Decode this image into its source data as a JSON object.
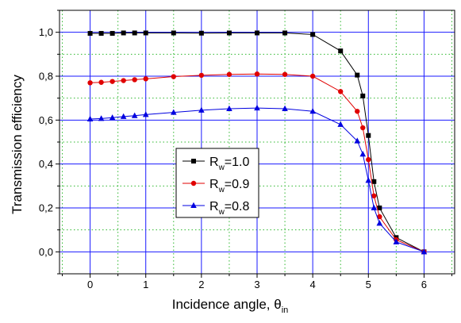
{
  "chart_data": {
    "type": "line",
    "title": "",
    "xlabel": "Incidence angle, θ",
    "xlabel_sub": "in",
    "ylabel": "Transmission efficiency",
    "xlim": [
      -0.55,
      6.55
    ],
    "ylim": [
      -0.1,
      1.1
    ],
    "x_ticks": [
      0,
      1,
      2,
      3,
      4,
      5,
      6
    ],
    "x_tick_labels": [
      "0",
      "1",
      "2",
      "3",
      "4",
      "5",
      "6"
    ],
    "y_ticks": [
      0.0,
      0.2,
      0.4,
      0.6,
      0.8,
      1.0
    ],
    "y_tick_labels": [
      "0,0",
      "0,2",
      "0,4",
      "0,6",
      "0,8",
      "1,0"
    ],
    "grid": "major solid blue, minor dotted green",
    "legend_position": "center",
    "series": [
      {
        "name": "R",
        "name_sub": "w",
        "name_suffix": "=1.0",
        "color": "#000000",
        "marker": "square",
        "x": [
          0,
          0.2,
          0.4,
          0.6,
          0.8,
          1.0,
          1.5,
          2.0,
          2.5,
          3.0,
          3.5,
          4.0,
          4.5,
          4.8,
          4.9,
          5.0,
          5.1,
          5.2,
          5.5,
          6.0
        ],
        "y": [
          0.995,
          0.995,
          0.995,
          0.997,
          0.997,
          0.997,
          0.997,
          0.996,
          0.997,
          0.997,
          0.997,
          0.99,
          0.915,
          0.805,
          0.71,
          0.53,
          0.32,
          0.2,
          0.065,
          0.0
        ]
      },
      {
        "name": "R",
        "name_sub": "w",
        "name_suffix": "=0.9",
        "color": "#e00000",
        "marker": "circle",
        "x": [
          0,
          0.2,
          0.4,
          0.6,
          0.8,
          1.0,
          1.5,
          2.0,
          2.5,
          3.0,
          3.5,
          4.0,
          4.5,
          4.8,
          4.9,
          5.0,
          5.1,
          5.2,
          5.5,
          6.0
        ],
        "y": [
          0.77,
          0.772,
          0.776,
          0.78,
          0.784,
          0.788,
          0.798,
          0.804,
          0.808,
          0.81,
          0.808,
          0.8,
          0.73,
          0.64,
          0.565,
          0.42,
          0.255,
          0.16,
          0.055,
          0.0
        ]
      },
      {
        "name": "R",
        "name_sub": "w",
        "name_suffix": "=0.8",
        "color": "#0000e0",
        "marker": "triangle",
        "x": [
          0,
          0.2,
          0.4,
          0.6,
          0.8,
          1.0,
          1.5,
          2.0,
          2.5,
          3.0,
          3.5,
          4.0,
          4.5,
          4.8,
          4.9,
          5.0,
          5.1,
          5.2,
          5.5,
          6.0
        ],
        "y": [
          0.605,
          0.607,
          0.611,
          0.616,
          0.62,
          0.625,
          0.635,
          0.645,
          0.652,
          0.655,
          0.652,
          0.64,
          0.58,
          0.505,
          0.445,
          0.325,
          0.2,
          0.13,
          0.045,
          0.0
        ]
      }
    ]
  }
}
